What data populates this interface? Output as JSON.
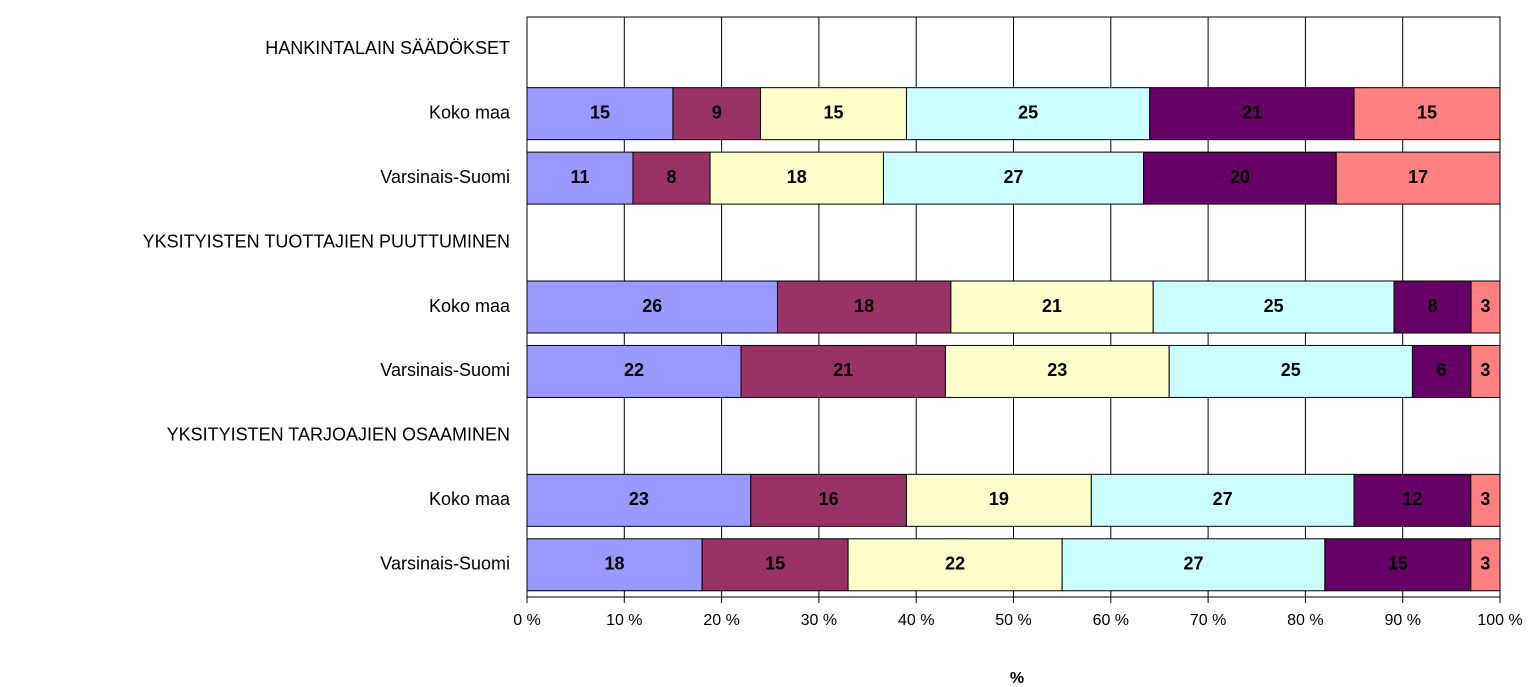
{
  "chart_data": {
    "type": "stacked_percent_barh",
    "categories": [
      "HANKINTALAIN SÄÄDÖKSET",
      "Koko maa",
      "Varsinais-Suomi",
      "YKSITYISTEN TUOTTAJIEN PUUTTUMINEN",
      "Koko maa",
      "Varsinais-Suomi",
      "YKSITYISTEN TARJOAJIEN OSAAMINEN",
      "Koko maa",
      "Varsinais-Suomi"
    ],
    "series": [
      {
        "color": "#9999ff",
        "values": [
          null,
          15,
          11,
          null,
          26,
          22,
          null,
          23,
          18
        ]
      },
      {
        "color": "#993366",
        "values": [
          null,
          9,
          8,
          null,
          18,
          21,
          null,
          16,
          15
        ]
      },
      {
        "color": "#ffffcc",
        "values": [
          null,
          15,
          18,
          null,
          21,
          23,
          null,
          19,
          22
        ]
      },
      {
        "color": "#ccffff",
        "values": [
          null,
          25,
          27,
          null,
          25,
          25,
          null,
          27,
          27
        ]
      },
      {
        "color": "#660066",
        "values": [
          null,
          21,
          20,
          null,
          8,
          6,
          null,
          12,
          15
        ]
      },
      {
        "color": "#ff8080",
        "values": [
          null,
          15,
          17,
          null,
          3,
          3,
          null,
          3,
          3
        ]
      }
    ],
    "xlabel": "%",
    "xlim": [
      0,
      100
    ],
    "xticks": [
      {
        "value": 0,
        "label": "0 %"
      },
      {
        "value": 10,
        "label": "10 %"
      },
      {
        "value": 20,
        "label": "20 %"
      },
      {
        "value": 30,
        "label": "30 %"
      },
      {
        "value": 40,
        "label": "40 %"
      },
      {
        "value": 50,
        "label": "50 %"
      },
      {
        "value": 60,
        "label": "60 %"
      },
      {
        "value": 70,
        "label": "70 %"
      },
      {
        "value": 80,
        "label": "80 %"
      },
      {
        "value": 90,
        "label": "90 %"
      },
      {
        "value": 100,
        "label": "100 %"
      }
    ],
    "grid": true
  }
}
